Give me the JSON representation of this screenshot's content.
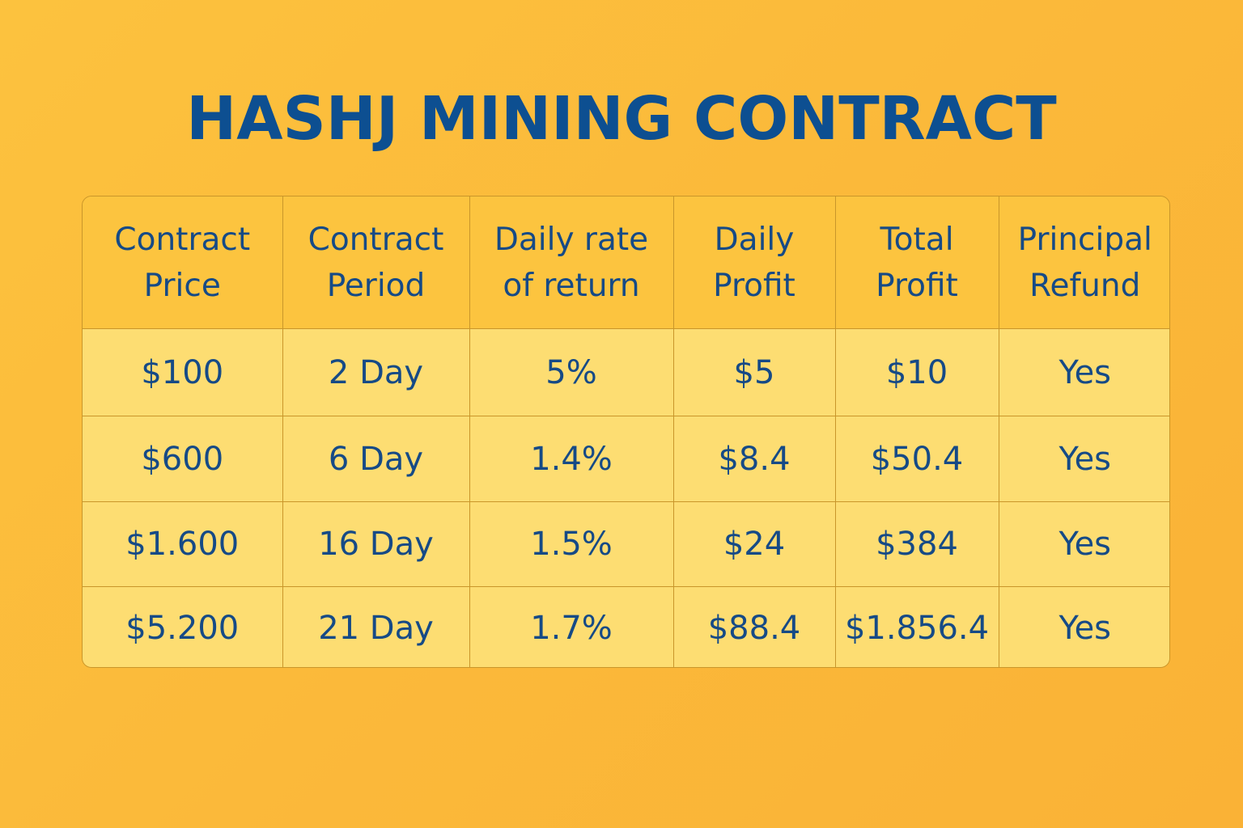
{
  "title": "HASHJ MINING CONTRACT",
  "table": {
    "headers": [
      "Contract\nPrice",
      "Contract\nPeriod",
      "Daily rate\nof return",
      "Daily\nProfit",
      "Total\nProfit",
      "Principal\nRefund"
    ],
    "rows": [
      [
        "$100",
        "2 Day",
        "5%",
        "$5",
        "$10",
        "Yes"
      ],
      [
        "$600",
        "6 Day",
        "1.4%",
        "$8.4",
        "$50.4",
        "Yes"
      ],
      [
        "$1.600",
        "16 Day",
        "1.5%",
        "$24",
        "$384",
        "Yes"
      ],
      [
        "$5.200",
        "21 Day",
        "1.7%",
        "$88.4",
        "$1.856.4",
        "Yes"
      ]
    ]
  },
  "colors": {
    "background": "#fcbd3c",
    "title": "#0d4f91",
    "header_fill": "#fcc43f",
    "cell_fill": "#fddd72",
    "border": "#c9962a",
    "text": "#164a86"
  }
}
